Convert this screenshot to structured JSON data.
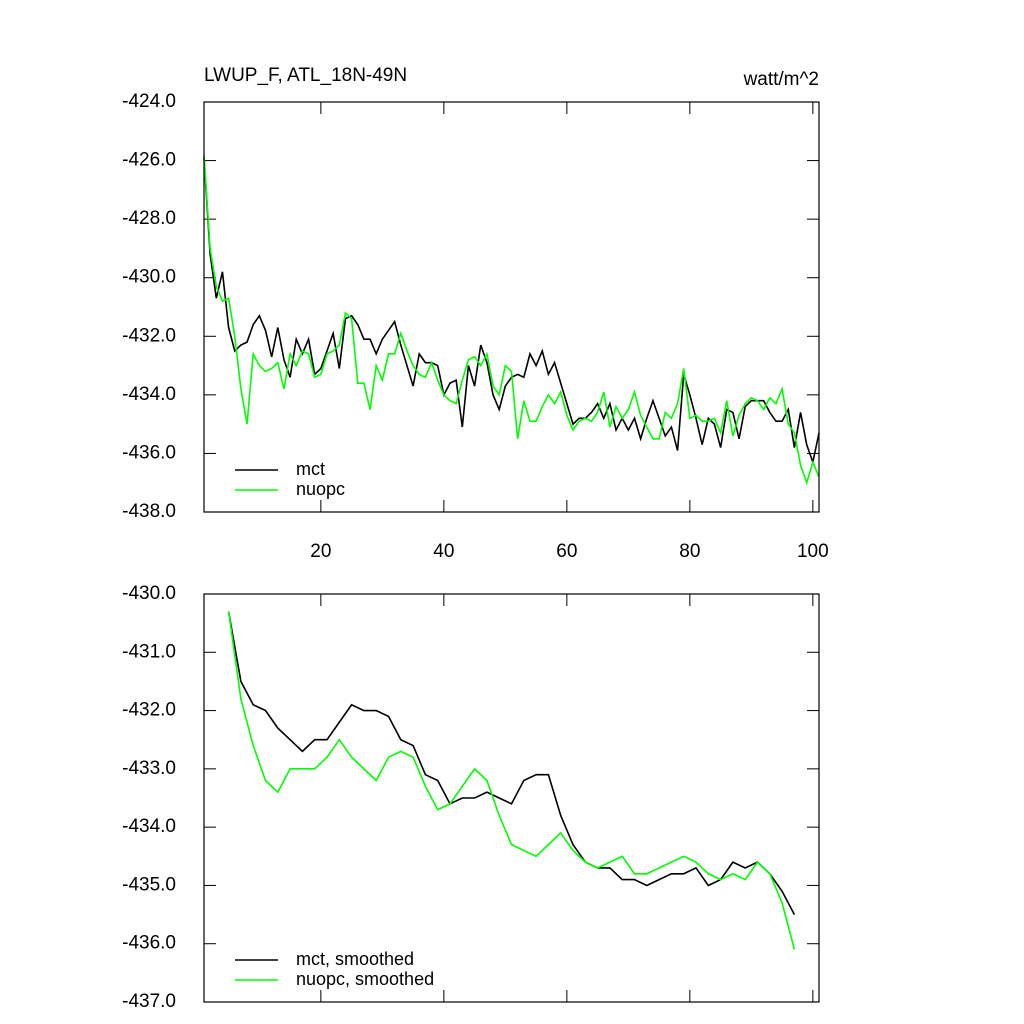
{
  "chart_data": [
    {
      "type": "line",
      "title": "LWUP_F, ATL_18N-49N",
      "units": "watt/m^2",
      "legend": "lower left",
      "x": [
        1,
        2,
        3,
        4,
        5,
        6,
        7,
        8,
        9,
        10,
        11,
        12,
        13,
        14,
        15,
        16,
        17,
        18,
        19,
        20,
        21,
        22,
        23,
        24,
        25,
        26,
        27,
        28,
        29,
        30,
        31,
        32,
        33,
        34,
        35,
        36,
        37,
        38,
        39,
        40,
        41,
        42,
        43,
        44,
        45,
        46,
        47,
        48,
        49,
        50,
        51,
        52,
        53,
        54,
        55,
        56,
        57,
        58,
        59,
        60,
        61,
        62,
        63,
        64,
        65,
        66,
        67,
        68,
        69,
        70,
        71,
        72,
        73,
        74,
        75,
        76,
        77,
        78,
        79,
        80,
        81,
        82,
        83,
        84,
        85,
        86,
        87,
        88,
        89,
        90,
        91,
        92,
        93,
        94,
        95,
        96,
        97,
        98,
        99,
        100,
        101
      ],
      "xlim": [
        1,
        101
      ],
      "xticks": [
        20,
        40,
        60,
        80,
        100
      ],
      "xtick_labels": true,
      "ylim": [
        -438,
        -424
      ],
      "yticks": [
        {
          "value": -424,
          "label": "-424.0"
        },
        {
          "value": -426,
          "label": "-426.0"
        },
        {
          "value": -428,
          "label": "-428.0"
        },
        {
          "value": -430,
          "label": "-430.0"
        },
        {
          "value": -432,
          "label": "-432.0"
        },
        {
          "value": -434,
          "label": "-434.0"
        },
        {
          "value": -436,
          "label": "-436.0"
        },
        {
          "value": -438,
          "label": "-438.0"
        }
      ],
      "series": [
        {
          "name": "mct",
          "color": "#000000",
          "values": [
            -425.9,
            -429.2,
            -430.7,
            -429.8,
            -431.7,
            -432.5,
            -432.3,
            -432.2,
            -431.6,
            -431.3,
            -431.8,
            -432.7,
            -431.7,
            -432.8,
            -433.4,
            -432.1,
            -432.6,
            -432.1,
            -433.3,
            -433.1,
            -432.5,
            -431.9,
            -433.1,
            -431.4,
            -431.3,
            -431.6,
            -432.1,
            -432.1,
            -432.6,
            -432.1,
            -431.8,
            -431.5,
            -432.3,
            -433.0,
            -433.7,
            -432.6,
            -432.9,
            -432.9,
            -433.0,
            -434.0,
            -433.6,
            -433.5,
            -435.1,
            -433.0,
            -433.7,
            -432.3,
            -432.9,
            -434.0,
            -434.5,
            -433.7,
            -433.4,
            -433.3,
            -433.4,
            -432.6,
            -433.0,
            -432.5,
            -433.3,
            -432.9,
            -433.6,
            -434.3,
            -435.0,
            -434.8,
            -434.8,
            -434.6,
            -434.3,
            -434.8,
            -434.3,
            -435.2,
            -434.8,
            -435.2,
            -434.8,
            -435.5,
            -434.8,
            -434.2,
            -434.8,
            -435.4,
            -435.1,
            -435.9,
            -433.3,
            -434.0,
            -434.8,
            -435.7,
            -434.8,
            -435.0,
            -435.8,
            -434.5,
            -434.6,
            -435.5,
            -434.4,
            -434.2,
            -434.2,
            -434.2,
            -434.6,
            -434.9,
            -434.9,
            -434.5,
            -435.8,
            -434.6,
            -435.7,
            -436.3,
            -435.3
          ]
        },
        {
          "name": "nuopc",
          "color": "#00ff00",
          "values": [
            -425.8,
            -429.0,
            -430.3,
            -430.8,
            -430.7,
            -432.0,
            -433.8,
            -435.0,
            -432.6,
            -433.0,
            -433.2,
            -433.1,
            -432.9,
            -433.8,
            -432.6,
            -433.0,
            -432.5,
            -432.6,
            -433.4,
            -433.3,
            -432.6,
            -432.5,
            -432.3,
            -431.2,
            -431.4,
            -433.6,
            -433.6,
            -434.5,
            -433.0,
            -433.5,
            -432.6,
            -432.6,
            -431.9,
            -432.5,
            -433.0,
            -433.3,
            -433.4,
            -432.9,
            -433.5,
            -434.0,
            -434.2,
            -434.3,
            -433.5,
            -432.8,
            -432.7,
            -433.0,
            -432.6,
            -433.7,
            -434.0,
            -433.0,
            -433.2,
            -435.5,
            -434.2,
            -434.9,
            -434.9,
            -434.4,
            -434.0,
            -434.3,
            -433.9,
            -434.7,
            -435.2,
            -434.9,
            -434.8,
            -434.9,
            -434.6,
            -433.9,
            -435.1,
            -434.4,
            -434.8,
            -434.5,
            -433.9,
            -434.7,
            -435.1,
            -435.5,
            -435.5,
            -434.6,
            -434.8,
            -434.3,
            -433.1,
            -434.8,
            -434.7,
            -434.9,
            -434.9,
            -434.8,
            -435.3,
            -434.2,
            -435.4,
            -434.7,
            -434.3,
            -434.1,
            -434.2,
            -434.5,
            -434.1,
            -434.3,
            -433.8,
            -435.0,
            -435.3,
            -436.4,
            -437.0,
            -436.3,
            -436.8
          ]
        }
      ]
    },
    {
      "type": "line",
      "legend": "lower left",
      "x": [
        5,
        7,
        9,
        11,
        13,
        15,
        17,
        19,
        21,
        23,
        25,
        27,
        29,
        31,
        33,
        35,
        37,
        39,
        41,
        43,
        45,
        47,
        49,
        51,
        53,
        55,
        57,
        59,
        61,
        63,
        65,
        67,
        69,
        71,
        73,
        75,
        77,
        79,
        81,
        83,
        85,
        87,
        89,
        91,
        93,
        95,
        97
      ],
      "xlim": [
        1,
        101
      ],
      "xticks": [
        20,
        40,
        60,
        80,
        100
      ],
      "xtick_labels": false,
      "ylim": [
        -437,
        -430
      ],
      "yticks": [
        {
          "value": -430,
          "label": "-430.0"
        },
        {
          "value": -431,
          "label": "-431.0"
        },
        {
          "value": -432,
          "label": "-432.0"
        },
        {
          "value": -433,
          "label": "-433.0"
        },
        {
          "value": -434,
          "label": "-434.0"
        },
        {
          "value": -435,
          "label": "-435.0"
        },
        {
          "value": -436,
          "label": "-436.0"
        },
        {
          "value": -437,
          "label": "-437.0"
        }
      ],
      "series": [
        {
          "name": "mct, smoothed",
          "color": "#000000",
          "values": [
            -430.3,
            -431.5,
            -431.9,
            -432.0,
            -432.3,
            -432.5,
            -432.7,
            -432.5,
            -432.5,
            -432.2,
            -431.9,
            -432.0,
            -432.0,
            -432.1,
            -432.5,
            -432.6,
            -433.1,
            -433.2,
            -433.6,
            -433.5,
            -433.5,
            -433.4,
            -433.5,
            -433.6,
            -433.2,
            -433.1,
            -433.1,
            -433.8,
            -434.3,
            -434.6,
            -434.7,
            -434.7,
            -434.9,
            -434.9,
            -435.0,
            -434.9,
            -434.8,
            -434.8,
            -434.7,
            -435.0,
            -434.9,
            -434.6,
            -434.7,
            -434.6,
            -434.8,
            -435.1,
            -435.5
          ]
        },
        {
          "name": "nuopc, smoothed",
          "color": "#00ff00",
          "values": [
            -430.3,
            -431.8,
            -432.6,
            -433.2,
            -433.4,
            -433.0,
            -433.0,
            -433.0,
            -432.8,
            -432.5,
            -432.8,
            -433.0,
            -433.2,
            -432.8,
            -432.7,
            -432.8,
            -433.3,
            -433.7,
            -433.6,
            -433.3,
            -433.0,
            -433.2,
            -433.8,
            -434.3,
            -434.4,
            -434.5,
            -434.3,
            -434.1,
            -434.4,
            -434.6,
            -434.7,
            -434.6,
            -434.5,
            -434.8,
            -434.8,
            -434.7,
            -434.6,
            -434.5,
            -434.6,
            -434.8,
            -434.9,
            -434.8,
            -434.9,
            -434.6,
            -434.8,
            -435.3,
            -436.1
          ]
        }
      ]
    }
  ]
}
